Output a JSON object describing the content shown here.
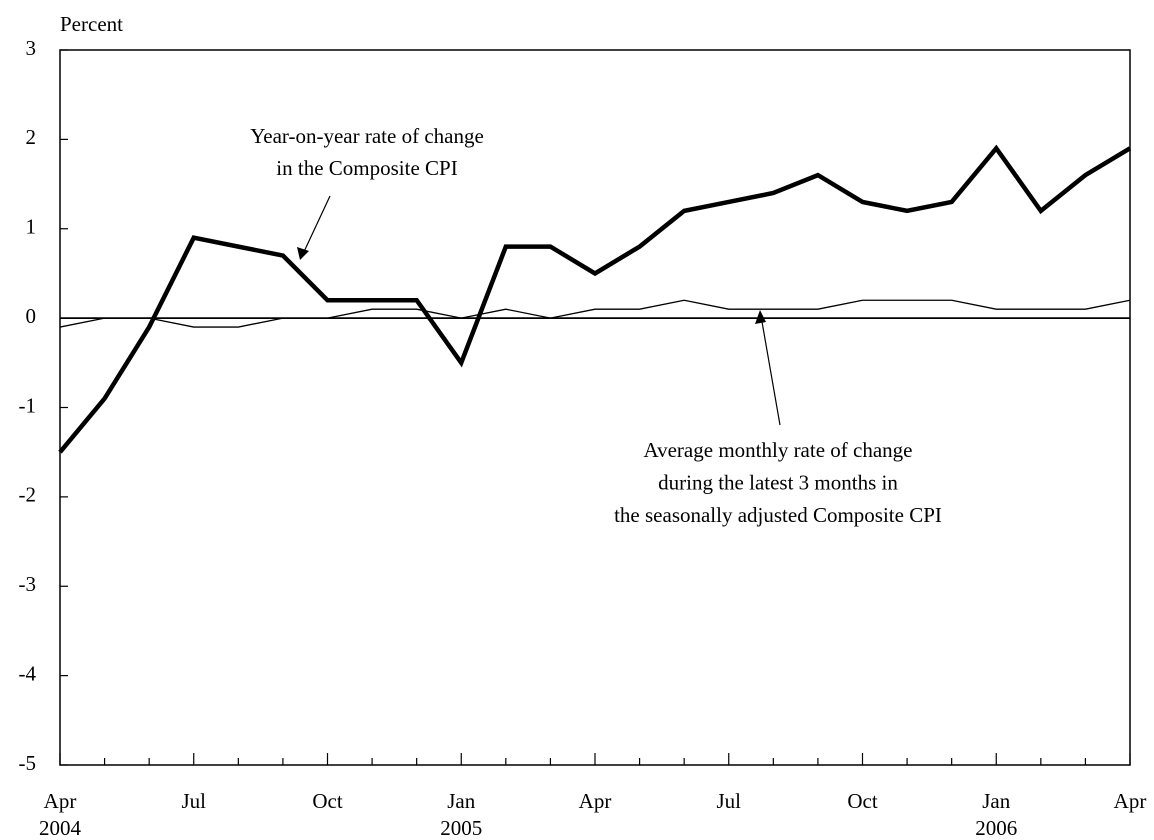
{
  "chart_data": {
    "type": "line",
    "y_axis_label": "Percent",
    "categories": [
      "Apr",
      null,
      null,
      "Jul",
      null,
      null,
      "Oct",
      null,
      null,
      "Jan",
      null,
      null,
      "Apr",
      null,
      null,
      "Jul",
      null,
      null,
      "Oct",
      null,
      null,
      "Jan",
      null,
      null,
      "Apr"
    ],
    "years": [
      "2004",
      null,
      null,
      null,
      null,
      null,
      null,
      null,
      null,
      "2005",
      null,
      null,
      null,
      null,
      null,
      null,
      null,
      null,
      null,
      null,
      null,
      "2006",
      null,
      null,
      null
    ],
    "series": [
      {
        "color": "#000000",
        "values": [
          -1.5,
          -0.9,
          -0.1,
          0.9,
          0.8,
          0.7,
          0.2,
          0.2,
          0.2,
          -0.5,
          0.8,
          0.8,
          0.5,
          0.8,
          1.2,
          1.3,
          1.4,
          1.6,
          1.3,
          1.2,
          1.3,
          1.9,
          1.2,
          1.6,
          1.9
        ]
      },
      {
        "color": "#000000",
        "values": [
          -0.1,
          0.0,
          0.0,
          -0.1,
          -0.1,
          0.0,
          0.0,
          0.1,
          0.1,
          0.0,
          0.1,
          0.0,
          0.1,
          0.1,
          0.2,
          0.1,
          0.1,
          0.1,
          0.2,
          0.2,
          0.2,
          0.1,
          0.1,
          0.1,
          0.2
        ]
      }
    ],
    "annotations": [
      {
        "lines": [
          "Year-on-year rate of change",
          "in the Composite CPI"
        ]
      },
      {
        "lines": [
          "Average monthly rate of change",
          "during the latest 3 months in",
          "the seasonally adjusted Composite CPI"
        ]
      }
    ],
    "ylim": [
      -5,
      3
    ],
    "yticks": [
      -5,
      -4,
      -3,
      -2,
      -1,
      0,
      1,
      2,
      3
    ]
  }
}
